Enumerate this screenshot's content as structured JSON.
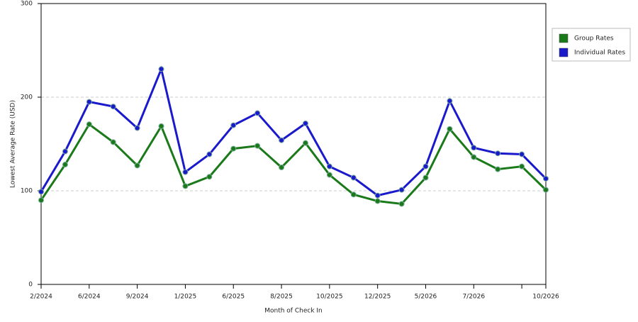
{
  "chart_data": {
    "type": "line",
    "x_label": "Month of Check In",
    "y_label": "Lowest Average Rate (USD)",
    "categories": [
      "2/2024",
      null,
      "6/2024",
      null,
      "9/2024",
      null,
      "1/2025",
      null,
      "6/2025",
      null,
      "8/2025",
      null,
      "10/2025",
      null,
      "12/2025",
      null,
      "5/2026",
      null,
      "7/2026",
      null,
      null,
      "10/2026"
    ],
    "series": [
      {
        "name": "Group Rates",
        "color": "#1a7a1a",
        "values": [
          90,
          128,
          171,
          152,
          127,
          169,
          105,
          115,
          145,
          148,
          125,
          151,
          117,
          96,
          89,
          86,
          114,
          166,
          136,
          123,
          126,
          101
        ]
      },
      {
        "name": "Individual Rates",
        "color": "#1a1acc",
        "values": [
          99,
          142,
          195,
          190,
          167,
          230,
          120,
          139,
          170,
          183,
          154,
          172,
          126,
          114,
          95,
          101,
          126,
          196,
          146,
          140,
          139,
          113
        ]
      }
    ],
    "ylim": [
      0,
      300
    ],
    "yticks": [
      0,
      100,
      200,
      300
    ],
    "grid": true,
    "legend": "right"
  }
}
